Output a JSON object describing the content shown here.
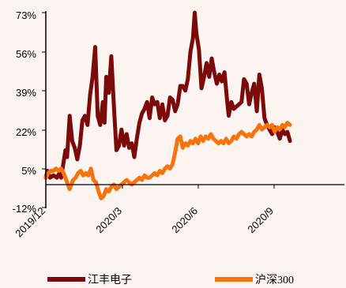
{
  "chart_data": {
    "type": "line",
    "ylim": [
      -12,
      73
    ],
    "yticks": [
      "73%",
      "56%",
      "39%",
      "22%",
      "5%",
      "-12%"
    ],
    "ytick_values": [
      73,
      56,
      39,
      22,
      5,
      -12
    ],
    "xlim": [
      "2019-12-01",
      "2020-11-16"
    ],
    "xticks": [
      {
        "label": "2019/12",
        "date": "2019-12-01"
      },
      {
        "label": "2020/3",
        "date": "2020-03-01"
      },
      {
        "label": "2020/6",
        "date": "2020-06-01"
      },
      {
        "label": "2020/9",
        "date": "2020-09-01"
      }
    ],
    "legend_position": "bottom",
    "grid": false,
    "series": [
      {
        "name": "江丰电子",
        "color": "#7B0A0A",
        "points": [
          [
            "2019-12-01",
            1
          ],
          [
            "2019-12-03",
            4
          ],
          [
            "2019-12-06",
            1
          ],
          [
            "2019-12-10",
            2
          ],
          [
            "2019-12-14",
            1
          ],
          [
            "2019-12-17",
            3
          ],
          [
            "2019-12-19",
            1
          ],
          [
            "2019-12-22",
            8
          ],
          [
            "2019-12-24",
            13
          ],
          [
            "2019-12-26",
            10
          ],
          [
            "2019-12-29",
            28
          ],
          [
            "2020-01-01",
            17
          ],
          [
            "2020-01-04",
            14
          ],
          [
            "2020-01-07",
            9
          ],
          [
            "2020-01-10",
            15
          ],
          [
            "2020-01-13",
            26
          ],
          [
            "2020-01-16",
            28
          ],
          [
            "2020-01-19",
            24
          ],
          [
            "2020-01-22",
            37
          ],
          [
            "2020-01-25",
            45
          ],
          [
            "2020-01-28",
            58
          ],
          [
            "2020-01-31",
            28
          ],
          [
            "2020-02-03",
            24
          ],
          [
            "2020-02-06",
            34
          ],
          [
            "2020-02-08",
            25
          ],
          [
            "2020-02-10",
            45
          ],
          [
            "2020-02-13",
            38
          ],
          [
            "2020-02-16",
            54
          ],
          [
            "2020-02-19",
            32
          ],
          [
            "2020-02-22",
            13
          ],
          [
            "2020-02-25",
            15
          ],
          [
            "2020-02-28",
            22
          ],
          [
            "2020-03-02",
            15
          ],
          [
            "2020-03-05",
            20
          ],
          [
            "2020-03-08",
            14
          ],
          [
            "2020-03-11",
            16
          ],
          [
            "2020-03-14",
            10
          ],
          [
            "2020-03-17",
            18
          ],
          [
            "2020-03-20",
            25
          ],
          [
            "2020-03-23",
            29
          ],
          [
            "2020-03-26",
            31
          ],
          [
            "2020-03-29",
            34
          ],
          [
            "2020-04-01",
            27
          ],
          [
            "2020-04-04",
            36
          ],
          [
            "2020-04-07",
            33
          ],
          [
            "2020-04-10",
            34
          ],
          [
            "2020-04-13",
            27
          ],
          [
            "2020-04-16",
            33
          ],
          [
            "2020-04-19",
            26
          ],
          [
            "2020-04-22",
            28
          ],
          [
            "2020-04-25",
            36
          ],
          [
            "2020-04-28",
            35
          ],
          [
            "2020-05-01",
            30
          ],
          [
            "2020-05-04",
            33
          ],
          [
            "2020-05-07",
            41
          ],
          [
            "2020-05-10",
            41
          ],
          [
            "2020-05-13",
            39
          ],
          [
            "2020-05-16",
            44
          ],
          [
            "2020-05-19",
            56
          ],
          [
            "2020-05-22",
            62
          ],
          [
            "2020-05-24",
            73
          ],
          [
            "2020-05-26",
            64
          ],
          [
            "2020-05-29",
            57
          ],
          [
            "2020-06-01",
            40
          ],
          [
            "2020-06-04",
            45
          ],
          [
            "2020-06-07",
            51
          ],
          [
            "2020-06-10",
            45
          ],
          [
            "2020-06-13",
            53
          ],
          [
            "2020-06-16",
            47
          ],
          [
            "2020-06-19",
            42
          ],
          [
            "2020-06-22",
            46
          ],
          [
            "2020-06-25",
            43
          ],
          [
            "2020-06-28",
            47
          ],
          [
            "2020-07-01",
            35
          ],
          [
            "2020-07-03",
            28
          ],
          [
            "2020-07-06",
            34
          ],
          [
            "2020-07-09",
            31
          ],
          [
            "2020-07-12",
            32
          ],
          [
            "2020-07-15",
            33
          ],
          [
            "2020-07-18",
            34
          ],
          [
            "2020-07-21",
            44
          ],
          [
            "2020-07-24",
            42
          ],
          [
            "2020-07-27",
            33
          ],
          [
            "2020-07-30",
            38
          ],
          [
            "2020-08-02",
            42
          ],
          [
            "2020-08-05",
            30
          ],
          [
            "2020-08-08",
            46
          ],
          [
            "2020-08-11",
            40
          ],
          [
            "2020-08-14",
            27
          ],
          [
            "2020-08-17",
            24
          ],
          [
            "2020-08-20",
            22
          ],
          [
            "2020-08-23",
            20
          ],
          [
            "2020-08-26",
            23
          ],
          [
            "2020-08-29",
            21
          ],
          [
            "2020-09-01",
            18
          ],
          [
            "2020-09-04",
            22
          ],
          [
            "2020-09-07",
            20
          ],
          [
            "2020-09-10",
            21
          ],
          [
            "2020-09-13",
            17
          ]
        ]
      },
      {
        "name": "沪深300",
        "color": "#F7740D",
        "points": [
          [
            "2019-12-01",
            1
          ],
          [
            "2019-12-04",
            3
          ],
          [
            "2019-12-07",
            4
          ],
          [
            "2019-12-10",
            4
          ],
          [
            "2019-12-13",
            5
          ],
          [
            "2019-12-16",
            4
          ],
          [
            "2019-12-19",
            5
          ],
          [
            "2019-12-22",
            3
          ],
          [
            "2019-12-26",
            -1
          ],
          [
            "2019-12-29",
            -4
          ],
          [
            "2020-01-02",
            0
          ],
          [
            "2020-01-05",
            1
          ],
          [
            "2020-01-08",
            3
          ],
          [
            "2020-01-11",
            4
          ],
          [
            "2020-01-14",
            2
          ],
          [
            "2020-01-17",
            3
          ],
          [
            "2020-01-20",
            2
          ],
          [
            "2020-01-23",
            5
          ],
          [
            "2020-01-26",
            0
          ],
          [
            "2020-01-29",
            -1
          ],
          [
            "2020-02-01",
            -5
          ],
          [
            "2020-02-04",
            -8
          ],
          [
            "2020-02-07",
            -7
          ],
          [
            "2020-02-10",
            -4
          ],
          [
            "2020-02-13",
            -5
          ],
          [
            "2020-02-16",
            -3
          ],
          [
            "2020-02-19",
            -2
          ],
          [
            "2020-02-22",
            -4
          ],
          [
            "2020-02-25",
            -3
          ],
          [
            "2020-02-28",
            -2
          ],
          [
            "2020-03-02",
            -1
          ],
          [
            "2020-03-05",
            0
          ],
          [
            "2020-03-08",
            -1
          ],
          [
            "2020-03-11",
            -2
          ],
          [
            "2020-03-14",
            -1
          ],
          [
            "2020-03-17",
            0
          ],
          [
            "2020-03-20",
            1
          ],
          [
            "2020-03-23",
            0
          ],
          [
            "2020-03-26",
            2
          ],
          [
            "2020-03-29",
            1
          ],
          [
            "2020-04-01",
            1
          ],
          [
            "2020-04-04",
            2
          ],
          [
            "2020-04-07",
            3
          ],
          [
            "2020-04-10",
            2
          ],
          [
            "2020-04-13",
            4
          ],
          [
            "2020-04-16",
            3
          ],
          [
            "2020-04-19",
            5
          ],
          [
            "2020-04-22",
            6
          ],
          [
            "2020-04-25",
            5
          ],
          [
            "2020-04-28",
            7
          ],
          [
            "2020-05-01",
            12
          ],
          [
            "2020-05-04",
            18
          ],
          [
            "2020-05-07",
            19
          ],
          [
            "2020-05-10",
            14
          ],
          [
            "2020-05-13",
            16
          ],
          [
            "2020-05-16",
            15
          ],
          [
            "2020-05-19",
            17
          ],
          [
            "2020-05-22",
            16
          ],
          [
            "2020-05-25",
            18
          ],
          [
            "2020-05-28",
            16
          ],
          [
            "2020-05-31",
            19
          ],
          [
            "2020-06-03",
            17
          ],
          [
            "2020-06-06",
            19
          ],
          [
            "2020-06-09",
            18
          ],
          [
            "2020-06-12",
            20
          ],
          [
            "2020-06-15",
            18
          ],
          [
            "2020-06-18",
            17
          ],
          [
            "2020-06-21",
            16
          ],
          [
            "2020-06-24",
            17
          ],
          [
            "2020-06-27",
            16
          ],
          [
            "2020-06-30",
            18
          ],
          [
            "2020-07-03",
            16
          ],
          [
            "2020-07-06",
            17
          ],
          [
            "2020-07-09",
            19
          ],
          [
            "2020-07-12",
            18
          ],
          [
            "2020-07-15",
            20
          ],
          [
            "2020-07-18",
            21
          ],
          [
            "2020-07-21",
            20
          ],
          [
            "2020-07-24",
            19
          ],
          [
            "2020-07-27",
            20
          ],
          [
            "2020-07-30",
            19
          ],
          [
            "2020-08-02",
            21
          ],
          [
            "2020-08-05",
            22
          ],
          [
            "2020-08-08",
            24
          ],
          [
            "2020-08-11",
            22
          ],
          [
            "2020-08-14",
            23
          ],
          [
            "2020-08-17",
            24
          ],
          [
            "2020-08-20",
            23
          ],
          [
            "2020-08-23",
            24
          ],
          [
            "2020-08-26",
            21
          ],
          [
            "2020-08-29",
            23
          ],
          [
            "2020-09-01",
            22
          ],
          [
            "2020-09-04",
            24
          ],
          [
            "2020-09-07",
            23
          ],
          [
            "2020-09-10",
            25
          ],
          [
            "2020-09-13",
            24
          ]
        ]
      }
    ]
  }
}
